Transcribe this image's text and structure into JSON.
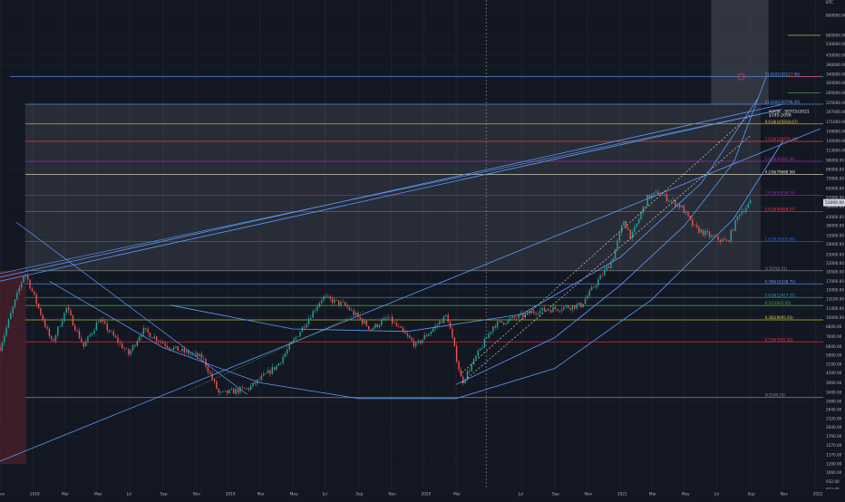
{
  "chart_data": {
    "type": "candlestick",
    "price_scale": "log",
    "currency_label": "BTC",
    "grid": true,
    "x_axis": {
      "range": [
        "2017-11-01",
        "2022-01-15"
      ],
      "ticks": [
        {
          "label": "Nov",
          "date": "2017-11-01"
        },
        {
          "label": "2018",
          "date": "2018-01-01"
        },
        {
          "label": "Mar",
          "date": "2018-03-01"
        },
        {
          "label": "May",
          "date": "2018-05-01"
        },
        {
          "label": "Jul",
          "date": "2018-07-01"
        },
        {
          "label": "Sep",
          "date": "2018-09-01"
        },
        {
          "label": "Nov",
          "date": "2018-11-01"
        },
        {
          "label": "2019",
          "date": "2019-01-01"
        },
        {
          "label": "Mar",
          "date": "2019-03-01"
        },
        {
          "label": "May",
          "date": "2019-05-01"
        },
        {
          "label": "Jul",
          "date": "2019-07-01"
        },
        {
          "label": "Sep",
          "date": "2019-09-01"
        },
        {
          "label": "Nov",
          "date": "2019-11-01"
        },
        {
          "label": "2020",
          "date": "2020-01-01"
        },
        {
          "label": "Mar",
          "date": "2020-03-01"
        },
        {
          "label": "Jul",
          "date": "2020-07-01"
        },
        {
          "label": "Sep",
          "date": "2020-09-01"
        },
        {
          "label": "Nov",
          "date": "2020-11-01"
        },
        {
          "label": "2021",
          "date": "2021-01-01"
        },
        {
          "label": "Mar",
          "date": "2021-03-01"
        },
        {
          "label": "May",
          "date": "2021-05-01"
        },
        {
          "label": "Jul",
          "date": "2021-07-01"
        },
        {
          "label": "Sep",
          "date": "2021-09-01"
        },
        {
          "label": "Nov",
          "date": "2021-11-01"
        },
        {
          "label": "2022",
          "date": "2022-01-01"
        }
      ]
    },
    "y_axis": {
      "range": [
        832,
        1000000
      ],
      "tick_labels": [
        "1000000.00",
        "800000.00",
        "600000.00",
        "530000.00",
        "450000.00",
        "390000.00",
        "340000.00",
        "300000.00",
        "260000.00",
        "225000.00",
        "197000.00",
        "171000.00",
        "149000.00",
        "130000.00",
        "113000.00",
        "98000.00",
        "86000.00",
        "75000.00",
        "65000.00",
        "57000.00",
        "50000.00",
        "43000.00",
        "38000.00",
        "33000.00",
        "29000.00",
        "25000.00",
        "22000.00",
        "19500.00",
        "17000.00",
        "15000.00",
        "13100.00",
        "11400.00",
        "10000.00",
        "8800.00",
        "7600.00",
        "6600.00",
        "5800.00",
        "5100.00",
        "4500.00",
        "3900.00",
        "3400.00",
        "2980.00",
        "2640.00",
        "2320.00",
        "2040.00",
        "1790.00",
        "1570.00",
        "1370.00",
        "1200.00",
        "1060.00",
        "932.00",
        "832.00"
      ],
      "current_price": "53000.00"
    },
    "ohlc_anchors": [
      {
        "date": "2017-11-01",
        "close": 6500
      },
      {
        "date": "2017-12-17",
        "close": 19500
      },
      {
        "date": "2018-02-06",
        "close": 6900
      },
      {
        "date": "2018-03-05",
        "close": 11500
      },
      {
        "date": "2018-04-06",
        "close": 6600
      },
      {
        "date": "2018-05-05",
        "close": 9800
      },
      {
        "date": "2018-06-29",
        "close": 5900
      },
      {
        "date": "2018-07-25",
        "close": 8400
      },
      {
        "date": "2018-09-15",
        "close": 6500
      },
      {
        "date": "2018-11-14",
        "close": 5600
      },
      {
        "date": "2018-12-15",
        "close": 3300
      },
      {
        "date": "2019-02-08",
        "close": 3600
      },
      {
        "date": "2019-04-02",
        "close": 5000
      },
      {
        "date": "2019-06-26",
        "close": 13500
      },
      {
        "date": "2019-08-06",
        "close": 12000
      },
      {
        "date": "2019-09-24",
        "close": 8500
      },
      {
        "date": "2019-10-26",
        "close": 10000
      },
      {
        "date": "2019-12-17",
        "close": 6700
      },
      {
        "date": "2020-02-13",
        "close": 10400
      },
      {
        "date": "2020-03-12",
        "close": 3900
      },
      {
        "date": "2020-05-10",
        "close": 9000
      },
      {
        "date": "2020-07-27",
        "close": 11000
      },
      {
        "date": "2020-10-20",
        "close": 12000
      },
      {
        "date": "2020-12-17",
        "close": 23000
      },
      {
        "date": "2021-01-08",
        "close": 41000
      },
      {
        "date": "2021-01-22",
        "close": 32000
      },
      {
        "date": "2021-02-21",
        "close": 57000
      },
      {
        "date": "2021-03-13",
        "close": 61000
      },
      {
        "date": "2021-04-25",
        "close": 50000
      },
      {
        "date": "2021-05-19",
        "close": 37000
      },
      {
        "date": "2021-06-22",
        "close": 32000
      },
      {
        "date": "2021-07-20",
        "close": 30000
      },
      {
        "date": "2021-08-12",
        "close": 46000
      },
      {
        "date": "2021-08-22",
        "close": 49000
      },
      {
        "date": "2021-09-01",
        "close": 53000
      }
    ],
    "fib_levels": [
      {
        "label": "15.618(329117.96)",
        "price": 329117.96,
        "color": "#5b9cf6"
      },
      {
        "label": "11.618(220798.40)",
        "price": 220798.4,
        "color": "#5b9cf6"
      },
      {
        "label": "9.618(165918.67)",
        "price": 165918.67,
        "color": "#e8c33a"
      },
      {
        "label": "7.618(128758.25)",
        "price": 128758.25,
        "color": "#f23645"
      },
      {
        "label": "5.618(96485.06)",
        "price": 96485.06,
        "color": "#9c27b0"
      },
      {
        "label": "4.236(79688.56)",
        "price": 79688.56,
        "color": "#e8e8d0"
      },
      {
        "label": "3.618(59034.76)",
        "price": 59034.76,
        "color": "#9c27b0"
      },
      {
        "label": "2.618(46658.97)",
        "price": 46658.97,
        "color": "#f23645"
      },
      {
        "label": "1.618(30201.69)",
        "price": 30201.69,
        "color": "#2962ff"
      },
      {
        "label": "1(19764.51)",
        "price": 19764.51,
        "color": "#888888"
      },
      {
        "label": "0.786(16338.75)",
        "price": 16338.75,
        "color": "#5b9cf6"
      },
      {
        "label": "0.618(13417.25)",
        "price": 13417.25,
        "color": "#26a69a"
      },
      {
        "label": "0.5(11935.05)",
        "price": 11935.05,
        "color": "#4caf50"
      },
      {
        "label": "0.382(9695.93)",
        "price": 9695.93,
        "color": "#cddc39"
      },
      {
        "label": "0.236(7051.85)",
        "price": 7051.85,
        "color": "#f23645"
      },
      {
        "label": "0(3148.29)",
        "price": 3148.29,
        "color": "#888888"
      }
    ],
    "annotations": [
      {
        "text": "AUG8 - SEP15/2021",
        "date": "2021-10-05",
        "price": 195000
      },
      {
        "text": "$195-205K",
        "date": "2021-10-05",
        "price": 185000
      }
    ]
  }
}
